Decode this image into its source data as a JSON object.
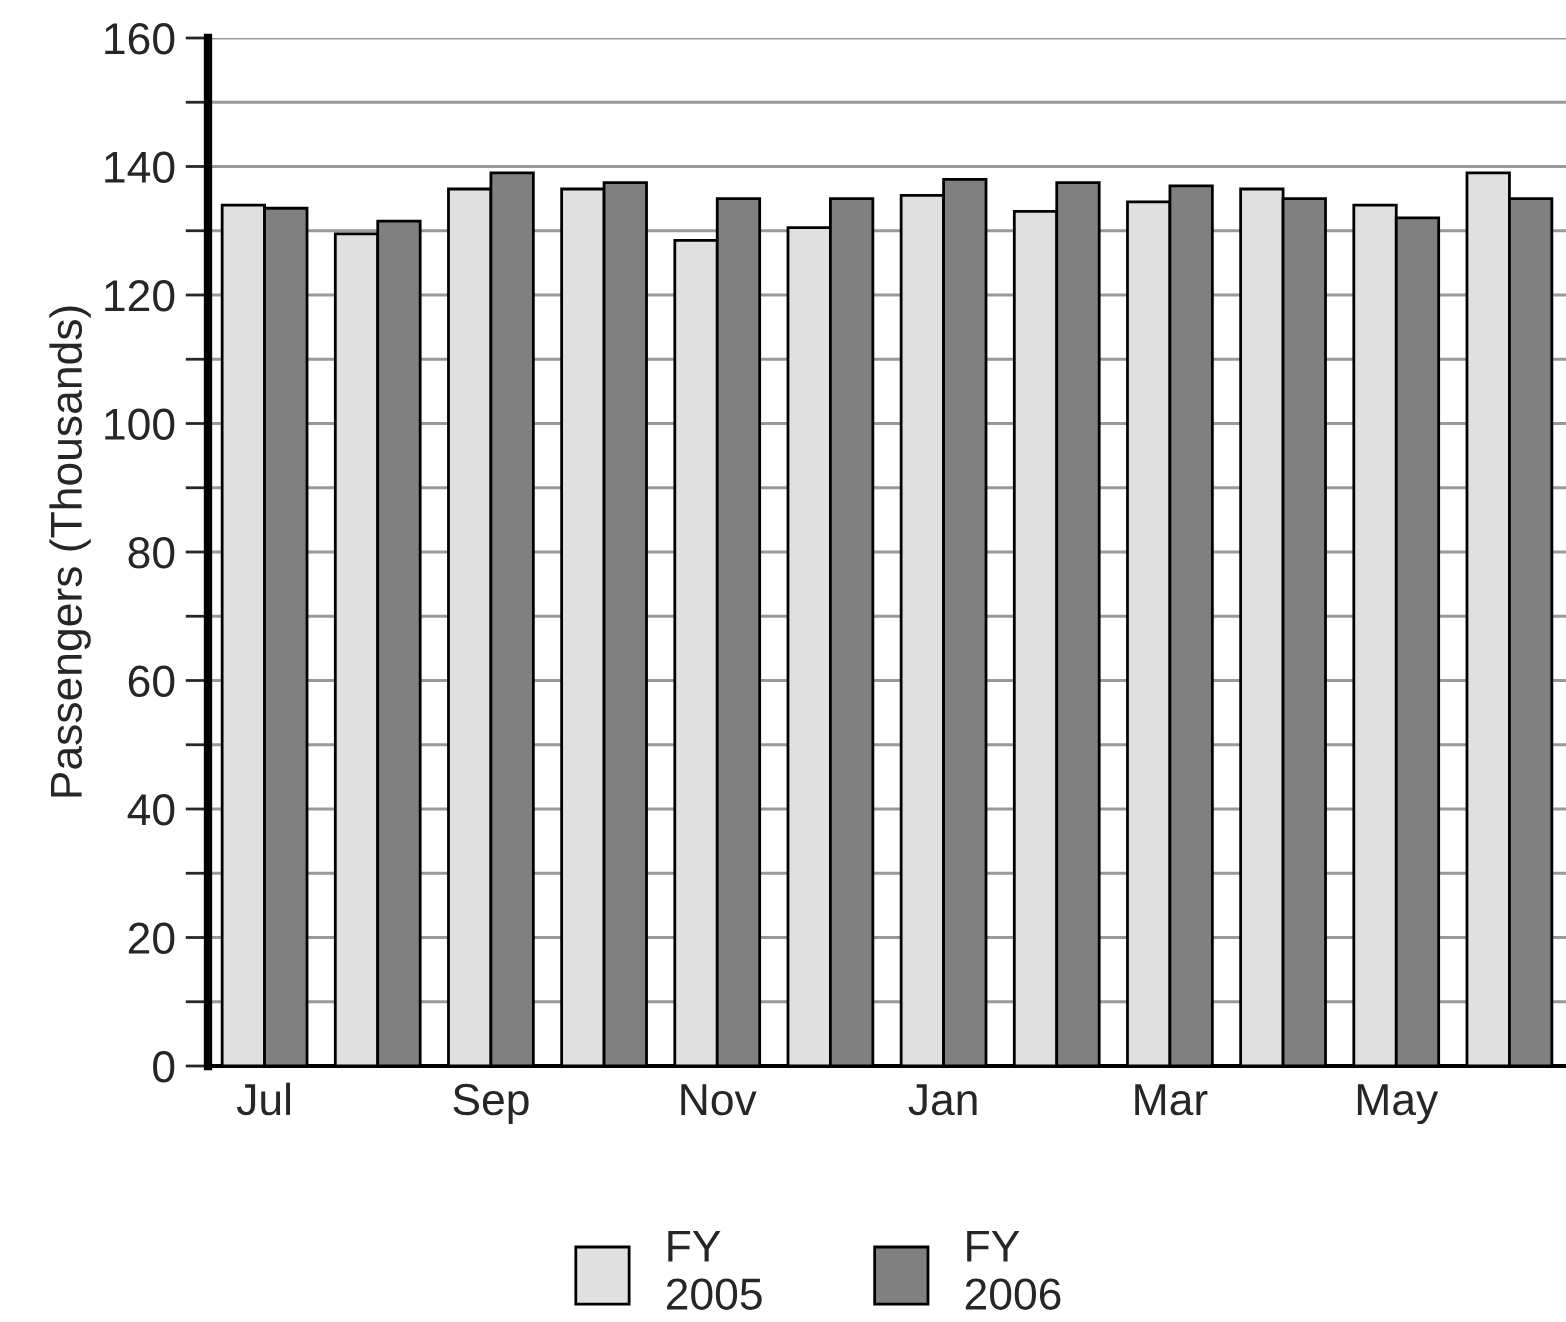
{
  "chart_data": {
    "type": "bar",
    "ylabel": "Passengers (Thousands)",
    "categories": [
      "Jul",
      null,
      "Sep",
      null,
      "Nov",
      null,
      "Jan",
      null,
      "Mar",
      null,
      "May",
      null
    ],
    "series": [
      {
        "name": "FY\n2005",
        "color": "#e0e0e0",
        "values": [
          134,
          129.5,
          136.5,
          136.5,
          128.5,
          130.5,
          135.5,
          133,
          134.5,
          136.5,
          134,
          139
        ]
      },
      {
        "name": "FY\n2006",
        "color": "#808080",
        "values": [
          133.5,
          131.5,
          139,
          137.5,
          135,
          135,
          138,
          137.5,
          137,
          135,
          132,
          135
        ]
      }
    ],
    "ylim": [
      0,
      160
    ],
    "yticks": [
      0,
      {
        "value": 10,
        "label": null
      },
      20,
      {
        "value": 30,
        "label": null
      },
      40,
      {
        "value": 50,
        "label": null
      },
      60,
      {
        "value": 70,
        "label": null
      },
      80,
      {
        "value": 90,
        "label": null
      },
      100,
      {
        "value": 110,
        "label": null
      },
      120,
      {
        "value": 130,
        "label": null
      },
      140,
      {
        "value": 150,
        "label": null
      },
      160
    ],
    "grid": "y",
    "legend": "bottom"
  }
}
